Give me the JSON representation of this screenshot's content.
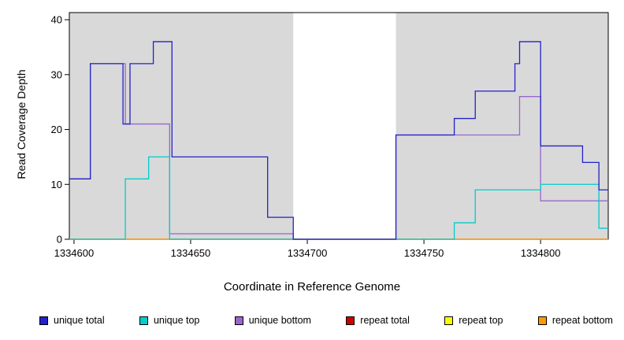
{
  "chart_data": {
    "type": "line",
    "title": "",
    "xlabel": "Coordinate in Reference Genome",
    "ylabel": "Read Coverage Depth",
    "xlim": [
      1334598,
      1334829
    ],
    "ylim": [
      0,
      41.3
    ],
    "xticks": [
      1334600,
      1334650,
      1334700,
      1334750,
      1334800
    ],
    "yticks": [
      0,
      10,
      20,
      30,
      40
    ],
    "grid": false,
    "plot_background": "#ffffff",
    "shaded_regions": [
      {
        "from": 1334598,
        "to": 1334694,
        "color": "#d9d9d9"
      },
      {
        "from": 1334738,
        "to": 1334829,
        "color": "#d9d9d9"
      }
    ],
    "series": [
      {
        "name": "repeat top",
        "color": "#ffff00",
        "steps": [
          [
            1334598,
            0
          ]
        ]
      },
      {
        "name": "repeat total",
        "color": "#cc0000",
        "steps": [
          [
            1334598,
            0
          ]
        ]
      },
      {
        "name": "repeat bottom",
        "color": "#ff9900",
        "steps": [
          [
            1334598,
            0
          ]
        ]
      },
      {
        "name": "unique bottom",
        "color": "#9966cc",
        "steps": [
          [
            1334598,
            11
          ],
          [
            1334607,
            32
          ],
          [
            1334622,
            21
          ],
          [
            1334641,
            1
          ],
          [
            1334694,
            0
          ],
          [
            1334738,
            19
          ],
          [
            1334791,
            26
          ],
          [
            1334800,
            7
          ]
        ]
      },
      {
        "name": "unique top",
        "color": "#00cccc",
        "steps": [
          [
            1334598,
            0
          ],
          [
            1334622,
            11
          ],
          [
            1334632,
            15
          ],
          [
            1334641,
            0
          ],
          [
            1334763,
            3
          ],
          [
            1334772,
            9
          ],
          [
            1334800,
            10
          ],
          [
            1334825,
            2
          ]
        ]
      },
      {
        "name": "unique total",
        "color": "#2222cc",
        "steps": [
          [
            1334598,
            11
          ],
          [
            1334607,
            32
          ],
          [
            1334621,
            21
          ],
          [
            1334624,
            32
          ],
          [
            1334634,
            36
          ],
          [
            1334642,
            15
          ],
          [
            1334683,
            4
          ],
          [
            1334694,
            0
          ],
          [
            1334738,
            19
          ],
          [
            1334763,
            22
          ],
          [
            1334772,
            27
          ],
          [
            1334789,
            32
          ],
          [
            1334791,
            36
          ],
          [
            1334800,
            17
          ],
          [
            1334818,
            14
          ],
          [
            1334825,
            9
          ]
        ]
      }
    ]
  },
  "legend": {
    "items": [
      {
        "label": "unique total",
        "color": "#2222cc"
      },
      {
        "label": "unique top",
        "color": "#00cccc"
      },
      {
        "label": "unique bottom",
        "color": "#9966cc"
      },
      {
        "label": "repeat total",
        "color": "#cc0000"
      },
      {
        "label": "repeat top",
        "color": "#ffff00"
      },
      {
        "label": "repeat bottom",
        "color": "#ff9900"
      }
    ]
  }
}
